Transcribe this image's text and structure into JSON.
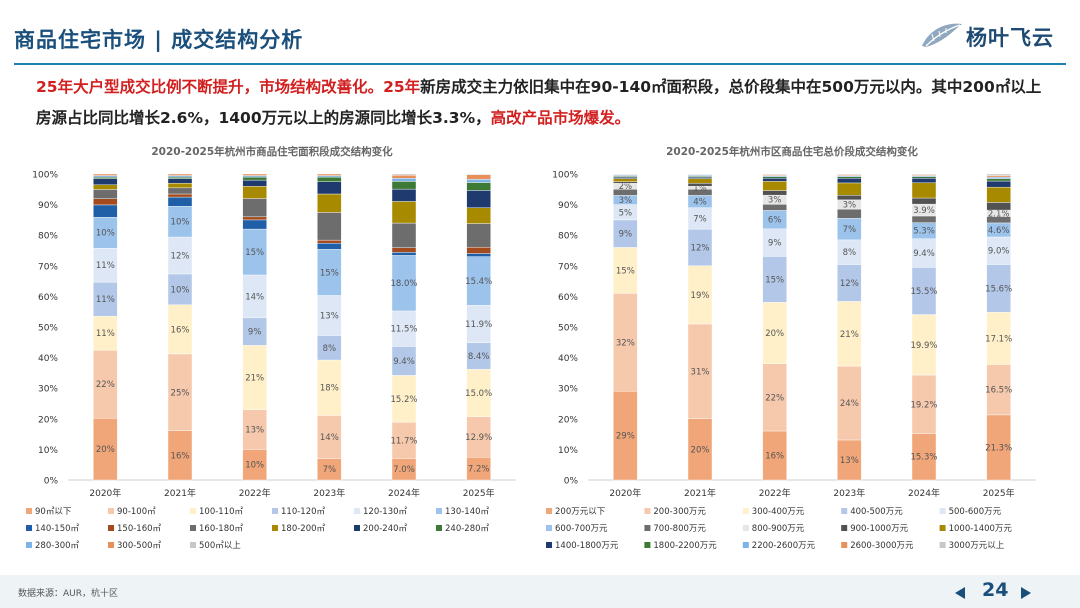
{
  "header": {
    "title": "商品住宅市场 | 成交结构分析",
    "logo_text": "杨叶飞云",
    "colors": {
      "title": "#1a4f7c",
      "rule": "#1f7fb0"
    }
  },
  "summary": {
    "part1": "25年大户型成交比例不断提升，市场结构改善化。",
    "part2": "25年",
    "part3": "新房成交主力依旧集中在90-140㎡面积段，总价段集中在500万元以内。其中200㎡以上房源占比同比增长2.6%，1400万元以上的房源同比增长3.3%，",
    "part4": "高改产品市场爆发。"
  },
  "footer": {
    "source": "数据来源：AUR，杭十区",
    "page_number": "24",
    "prev_icon": "triangle-left-icon",
    "next_icon": "triangle-right-icon"
  },
  "chart_data": [
    {
      "type": "bar",
      "stacked": "percent",
      "title": "2020-2025年杭州市商品住宅面积段成交结构变化",
      "categories": [
        "2020年",
        "2021年",
        "2022年",
        "2023年",
        "2024年",
        "2025年"
      ],
      "y_ticks": [
        "0%",
        "10%",
        "20%",
        "30%",
        "40%",
        "50%",
        "60%",
        "70%",
        "80%",
        "90%",
        "100%"
      ],
      "ylim": [
        0,
        100
      ],
      "series": [
        {
          "name": "90㎡以下",
          "color": "#f0a678",
          "values": [
            20,
            16,
            10,
            7,
            7,
            7.2
          ],
          "labels": [
            "20%",
            "16%",
            "10%",
            "7%",
            "7.0%",
            "7.2%"
          ]
        },
        {
          "name": "90-100㎡",
          "color": "#f6c9ad",
          "values": [
            22,
            25,
            13,
            14,
            11.7,
            12.9
          ],
          "labels": [
            "22%",
            "25%",
            "13%",
            "14%",
            "11.7%",
            "12.9%"
          ]
        },
        {
          "name": "100-110㎡",
          "color": "#fff0c9",
          "values": [
            11,
            16,
            21,
            18,
            15.2,
            15
          ],
          "labels": [
            "11%",
            "16%",
            "21%",
            "18%",
            "15.2%",
            "15.0%"
          ]
        },
        {
          "name": "110-120㎡",
          "color": "#b3c8e8",
          "values": [
            11,
            10,
            9,
            8,
            9.4,
            8.4
          ],
          "labels": [
            "11%",
            "10%",
            "9%",
            "8%",
            "9.4%",
            "8.4%"
          ]
        },
        {
          "name": "120-130㎡",
          "color": "#dde7f5",
          "values": [
            11,
            12,
            14,
            13,
            11.5,
            11.9
          ],
          "labels": [
            "11%",
            "12%",
            "14%",
            "13%",
            "11.5%",
            "11.9%"
          ]
        },
        {
          "name": "130-140㎡",
          "color": "#9cc3ec",
          "values": [
            10,
            10,
            15,
            15,
            18,
            15.4
          ],
          "labels": [
            "10%",
            "10%",
            "15%",
            "15%",
            "18.0%",
            "15.4%"
          ]
        },
        {
          "name": "140-150㎡",
          "color": "#1f5fa8",
          "values": [
            4,
            3,
            3,
            2,
            1,
            1
          ],
          "labels": [
            "",
            "",
            "",
            "",
            "",
            ""
          ]
        },
        {
          "name": "150-160㎡",
          "color": "#a34b1e",
          "values": [
            2,
            1,
            1,
            1,
            1.5,
            2
          ],
          "labels": [
            "",
            "",
            "",
            "",
            "",
            ""
          ]
        },
        {
          "name": "160-180㎡",
          "color": "#6d6d6d",
          "values": [
            3,
            2,
            6,
            9,
            8,
            7.5
          ],
          "labels": [
            "",
            "",
            "",
            "",
            "",
            ""
          ]
        },
        {
          "name": "180-200㎡",
          "color": "#a88a00",
          "values": [
            1.5,
            1.5,
            4,
            6,
            7,
            5
          ],
          "labels": [
            "",
            "",
            "",
            "",
            "",
            ""
          ]
        },
        {
          "name": "200-240㎡",
          "color": "#1e3a6e",
          "values": [
            2,
            1.5,
            2,
            4,
            4,
            5.5
          ],
          "labels": [
            "",
            "",
            "",
            "",
            "",
            ""
          ]
        },
        {
          "name": "240-280㎡",
          "color": "#3d7a36",
          "values": [
            0.5,
            0.5,
            1,
            1.5,
            2.5,
            2.5
          ],
          "labels": [
            "",
            "",
            "",
            "",
            "",
            ""
          ]
        },
        {
          "name": "280-300㎡",
          "color": "#7fb2e6",
          "values": [
            0.5,
            0.5,
            0.5,
            0.5,
            1,
            1
          ],
          "labels": [
            "",
            "",
            "",
            "",
            "",
            ""
          ]
        },
        {
          "name": "300-500㎡",
          "color": "#e8905a",
          "values": [
            0.5,
            0.5,
            0.5,
            0.5,
            1,
            1.5
          ],
          "labels": [
            "",
            "",
            "",
            "",
            "",
            ""
          ]
        },
        {
          "name": "500㎡以上",
          "color": "#c8c8c8",
          "values": [
            0,
            0,
            0,
            0,
            0.4,
            0.2
          ],
          "labels": [
            "",
            "",
            "",
            "",
            "",
            ""
          ]
        }
      ]
    },
    {
      "type": "bar",
      "stacked": "percent",
      "title": "2020-2025年杭州市区商品住宅总价段成交结构变化",
      "categories": [
        "2020年",
        "2021年",
        "2022年",
        "2023年",
        "2024年",
        "2025年"
      ],
      "y_ticks": [
        "0%",
        "10%",
        "20%",
        "30%",
        "40%",
        "50%",
        "60%",
        "70%",
        "80%",
        "90%",
        "100%"
      ],
      "ylim": [
        0,
        100
      ],
      "series": [
        {
          "name": "200万元以下",
          "color": "#f0a678",
          "values": [
            29,
            20,
            16,
            13,
            15.3,
            21.3
          ],
          "labels": [
            "29%",
            "20%",
            "16%",
            "13%",
            "15.3%",
            "21.3%"
          ]
        },
        {
          "name": "200-300万元",
          "color": "#f6c9ad",
          "values": [
            32,
            31,
            22,
            24,
            19.2,
            16.5
          ],
          "labels": [
            "32%",
            "31%",
            "22%",
            "24%",
            "19.2%",
            "16.5%"
          ]
        },
        {
          "name": "300-400万元",
          "color": "#fff0c9",
          "values": [
            15,
            19,
            20,
            21,
            19.9,
            17.1
          ],
          "labels": [
            "15%",
            "19%",
            "20%",
            "21%",
            "19.9%",
            "17.1%"
          ]
        },
        {
          "name": "400-500万元",
          "color": "#b3c8e8",
          "values": [
            9,
            12,
            15,
            12,
            15.5,
            15.6
          ],
          "labels": [
            "9%",
            "12%",
            "15%",
            "12%",
            "15.5%",
            "15.6%"
          ]
        },
        {
          "name": "500-600万元",
          "color": "#dde7f5",
          "values": [
            5,
            7,
            9,
            8,
            9.4,
            9
          ],
          "labels": [
            "5%",
            "7%",
            "9%",
            "8%",
            "9.4%",
            "9.0%"
          ]
        },
        {
          "name": "600-700万元",
          "color": "#9cc3ec",
          "values": [
            3,
            4,
            6,
            7,
            5.3,
            4.6
          ],
          "labels": [
            "3%",
            "4%",
            "6%",
            "7%",
            "5.3%",
            "4.6%"
          ]
        },
        {
          "name": "700-800万元",
          "color": "#6d6d6d",
          "values": [
            2,
            2,
            2,
            3,
            2.2,
            2.1
          ],
          "labels": [
            "",
            "",
            "",
            "",
            "",
            ""
          ]
        },
        {
          "name": "800-900万元",
          "color": "#e6e6e6",
          "values": [
            2,
            1,
            3,
            3,
            3.9,
            2.1
          ],
          "labels": [
            "2%",
            "1%",
            "3%",
            "3%",
            "3.9%",
            "2.1%"
          ]
        },
        {
          "name": "900-1000万元",
          "color": "#525252",
          "values": [
            0.5,
            1,
            1.5,
            1.5,
            2,
            2.5
          ],
          "labels": [
            "",
            "",
            "",
            "",
            "",
            ""
          ]
        },
        {
          "name": "1000-1400万元",
          "color": "#a88a00",
          "values": [
            1,
            1.5,
            3,
            4,
            5,
            5
          ],
          "labels": [
            "",
            "",
            "",
            "",
            "",
            ""
          ]
        },
        {
          "name": "1400-1800万元",
          "color": "#1e3a6e",
          "values": [
            0.5,
            0.5,
            1,
            1.5,
            1.5,
            2
          ],
          "labels": [
            "",
            "",
            "",
            "",
            "",
            ""
          ]
        },
        {
          "name": "1800-2200万元",
          "color": "#3d7a36",
          "values": [
            0.3,
            0.3,
            0.5,
            0.5,
            0.5,
            0.8
          ],
          "labels": [
            "",
            "",
            "",
            "",
            "",
            ""
          ]
        },
        {
          "name": "2200-2600万元",
          "color": "#7fb2e6",
          "values": [
            0.3,
            0.3,
            0.3,
            0.3,
            0.3,
            0.5
          ],
          "labels": [
            "",
            "",
            "",
            "",
            "",
            ""
          ]
        },
        {
          "name": "2600-3000万元",
          "color": "#e8905a",
          "values": [
            0.2,
            0.2,
            0.3,
            0.3,
            0.3,
            0.5
          ],
          "labels": [
            "",
            "",
            "",
            "",
            "",
            ""
          ]
        },
        {
          "name": "3000万元以上",
          "color": "#c8c8c8",
          "values": [
            0.2,
            0.2,
            0.3,
            0.3,
            0.3,
            0.5
          ],
          "labels": [
            "",
            "",
            "",
            "",
            "",
            ""
          ]
        }
      ]
    }
  ]
}
